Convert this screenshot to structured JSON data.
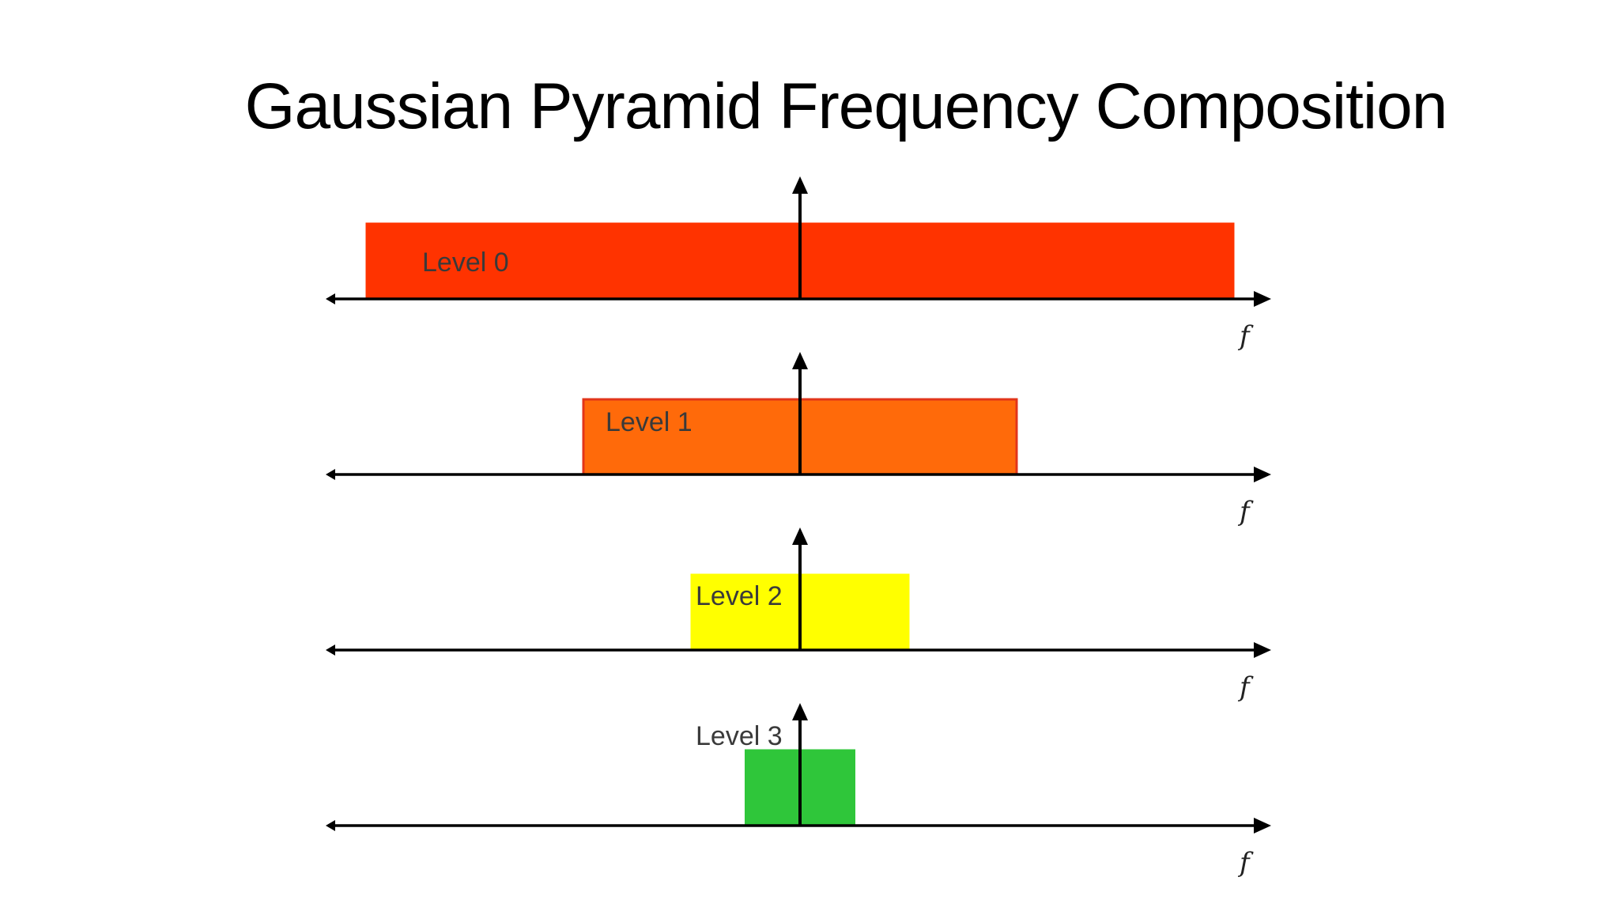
{
  "slide": {
    "title": "Gaussian Pyramid Frequency Composition"
  },
  "axis_label": "f",
  "levels": [
    {
      "label": "Level 0",
      "half_band": 1.0,
      "fill": "#FF3300",
      "stroke": "#FF3300"
    },
    {
      "label": "Level 1",
      "half_band": 0.5,
      "fill": "#FF6A0A",
      "stroke": "#E2351A"
    },
    {
      "label": "Level 2",
      "half_band": 0.25,
      "fill": "#FFFF00",
      "stroke": "#FFFF00"
    },
    {
      "label": "Level 3",
      "half_band": 0.125,
      "fill": "#2FC63A",
      "stroke": "#2FC63A"
    }
  ]
}
